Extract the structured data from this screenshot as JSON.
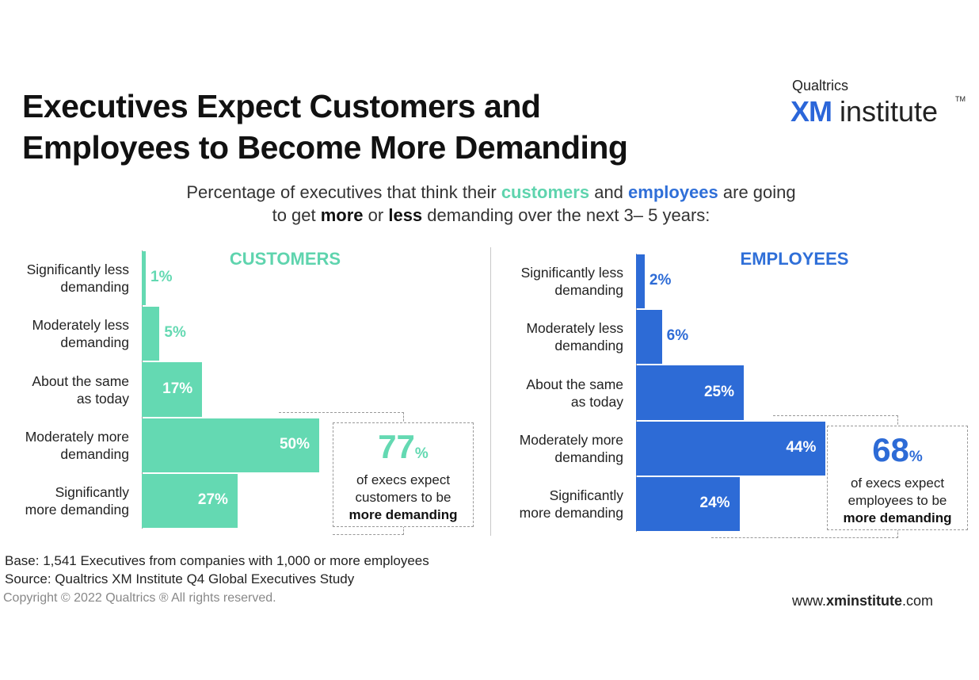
{
  "title_line1": "Executives Expect Customers and",
  "title_line2": "Employees to Become More Demanding",
  "logo": {
    "top": "Qualtrics",
    "xm": "XM",
    "institute": "institute",
    "tm": "TM"
  },
  "subtitle": {
    "p1": "Percentage of executives that think their ",
    "customers": "customers",
    "p2": " and ",
    "employees": "employees",
    "p3": " are going",
    "p4": "to get ",
    "more": "more",
    "p5": " or ",
    "less": "less",
    "p6": " demanding over the next 3– 5 years:"
  },
  "colors": {
    "customers": "#64d9b2",
    "employees": "#2d6bd6"
  },
  "chart_data": [
    {
      "type": "bar",
      "orientation": "horizontal",
      "title": "CUSTOMERS",
      "categories": [
        "Significantly less demanding",
        "Moderately less demanding",
        "About the same as today",
        "Moderately more demanding",
        "Significantly more demanding"
      ],
      "values": [
        1,
        5,
        17,
        50,
        27
      ],
      "value_labels": [
        "1%",
        "5%",
        "17%",
        "50%",
        "27%"
      ],
      "callout": {
        "value": "77",
        "unit": "%",
        "line1": "of execs expect",
        "line2": "customers to be",
        "line3": "more demanding"
      }
    },
    {
      "type": "bar",
      "orientation": "horizontal",
      "title": "EMPLOYEES",
      "categories": [
        "Significantly less demanding",
        "Moderately less demanding",
        "About the same as today",
        "Moderately more demanding",
        "Significantly more demanding"
      ],
      "values": [
        2,
        6,
        25,
        44,
        24
      ],
      "value_labels": [
        "2%",
        "6%",
        "25%",
        "44%",
        "24%"
      ],
      "callout": {
        "value": "68",
        "unit": "%",
        "line1": "of execs expect",
        "line2": "employees to be",
        "line3": "more demanding"
      }
    }
  ],
  "category_lines": [
    [
      "Significantly less",
      "demanding"
    ],
    [
      "Moderately less",
      "demanding"
    ],
    [
      "About the same",
      "as today"
    ],
    [
      "Moderately more",
      "demanding"
    ],
    [
      "Significantly",
      "more demanding"
    ]
  ],
  "footer": {
    "base": "Base: 1,541 Executives from companies with 1,000 or more employees",
    "source": "Source: Qualtrics XM Institute Q4 Global Executives Study",
    "copyright": "Copyright © 2022 Qualtrics ® All rights reserved.",
    "url_pre": "www.",
    "url_bold": "xminstitute",
    "url_post": ".com"
  }
}
